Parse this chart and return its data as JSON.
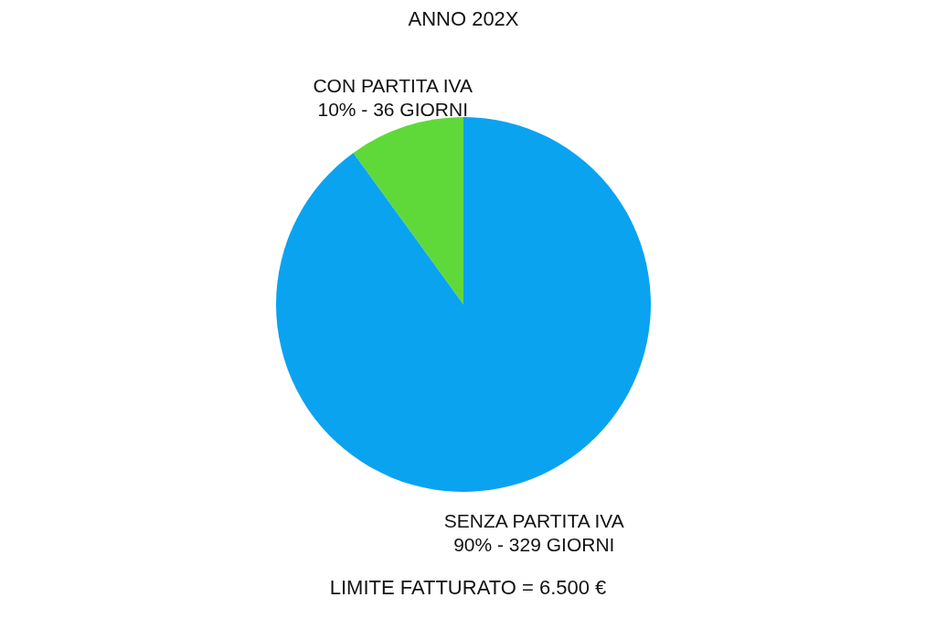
{
  "chart_data": {
    "type": "pie",
    "title": "ANNO 202X",
    "categories": [
      "CON PARTITA IVA",
      "SENZA PARTITA IVA"
    ],
    "values": [
      10,
      90
    ],
    "colors": [
      "#5fd93a",
      "#0aa3f0"
    ],
    "value_labels": [
      "10% - 36 GIORNI",
      "90% - 329 GIORNI"
    ],
    "annotations": [
      "LIMITE FATTURATO = 6.500 €"
    ]
  }
}
